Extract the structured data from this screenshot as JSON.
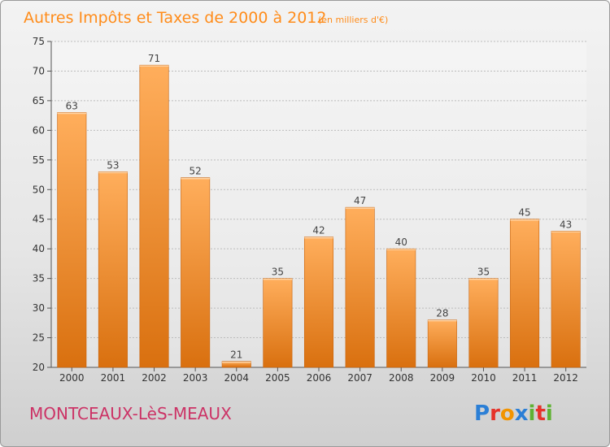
{
  "header": {
    "title": "Autres Impôts et Taxes de 2000 à 2012",
    "subtitle": "(en milliers d'€)"
  },
  "footer": {
    "commune": "MONTCEAUX-LèS-MEAUX",
    "brand": "Proxiti",
    "brand_colors": [
      "#2b7fd6",
      "#e6332a",
      "#f29400",
      "#2b7fd6",
      "#5fb233",
      "#e6332a",
      "#5fb233"
    ]
  },
  "colors": {
    "bar_light": "#ffae5c",
    "bar_dark": "#d9700f",
    "title": "#ff8c1a",
    "commune": "#cc3366"
  },
  "chart_data": {
    "type": "bar",
    "title": "Autres Impôts et Taxes de 2000 à 2012",
    "subtitle": "(en milliers d'€)",
    "categories": [
      "2000",
      "2001",
      "2002",
      "2003",
      "2004",
      "2005",
      "2006",
      "2007",
      "2008",
      "2009",
      "2010",
      "2011",
      "2012"
    ],
    "values": [
      63,
      53,
      71,
      52,
      21,
      35,
      42,
      47,
      40,
      28,
      35,
      45,
      43
    ],
    "ylim": [
      20,
      75
    ],
    "yticks": [
      20,
      25,
      30,
      35,
      40,
      45,
      50,
      55,
      60,
      65,
      70,
      75
    ],
    "grid": true,
    "legend": "none"
  }
}
